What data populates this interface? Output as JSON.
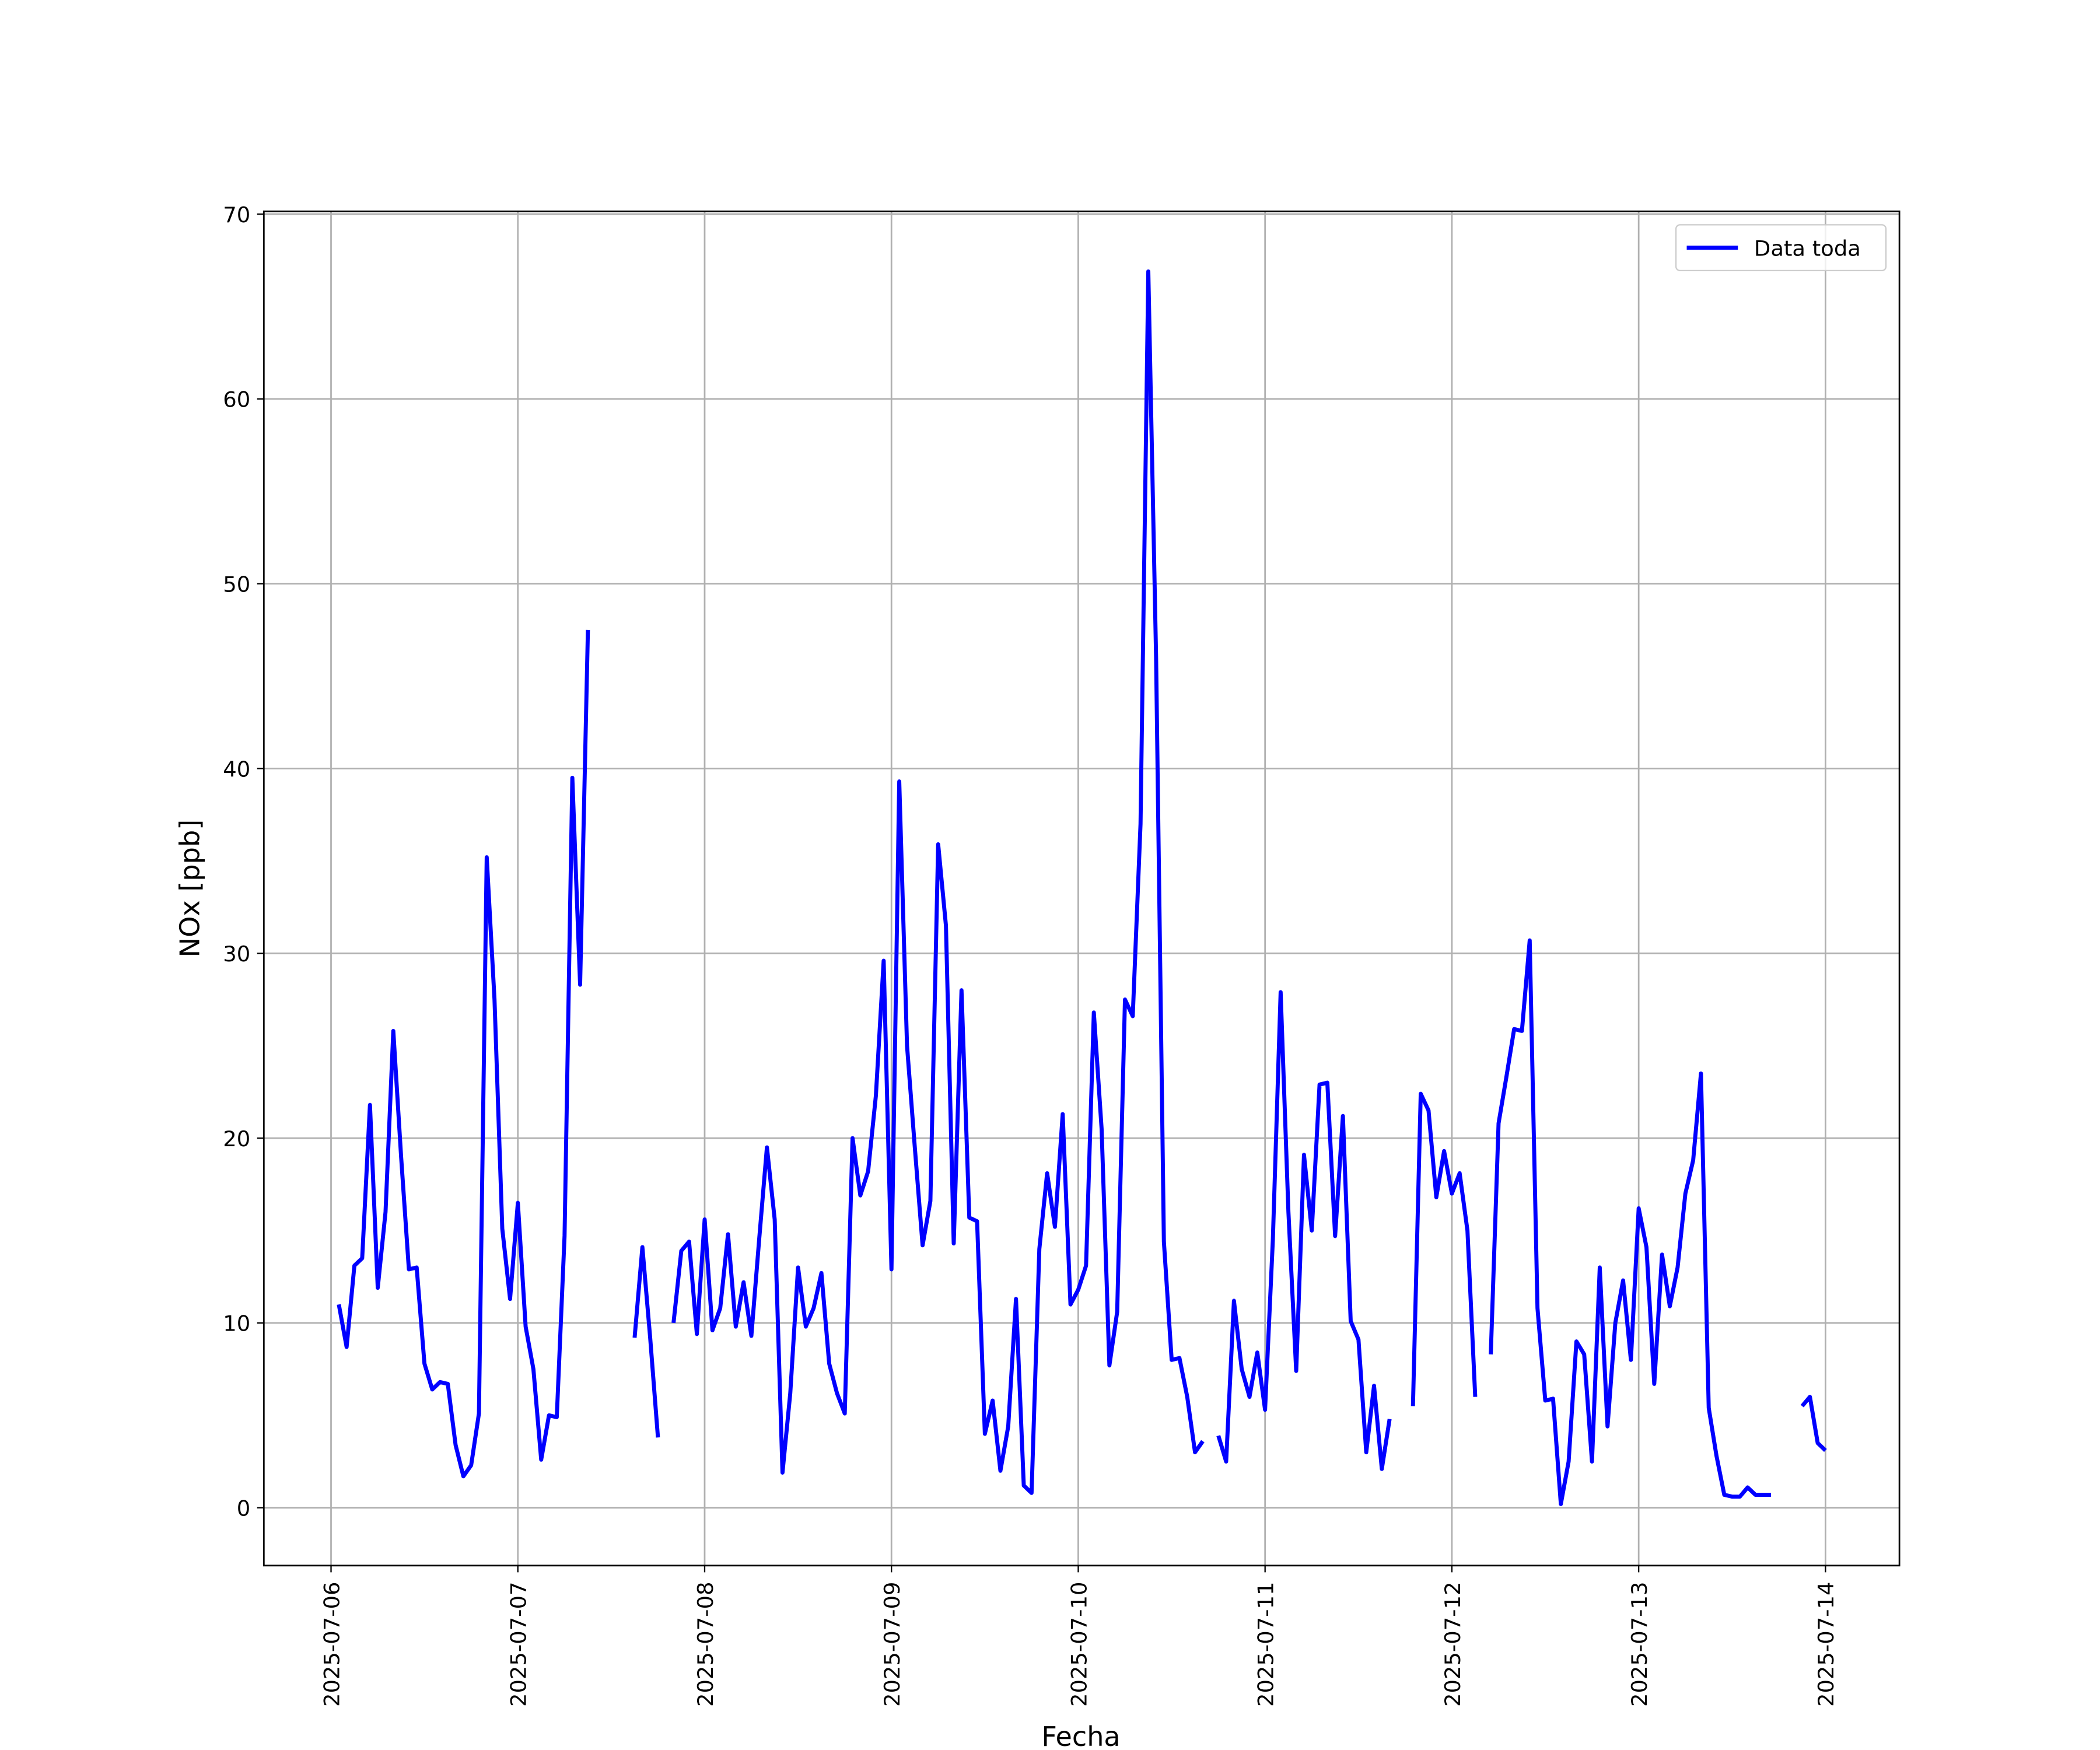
{
  "chart_data": {
    "type": "line",
    "x_label": "Fecha",
    "y_label": "NOx [ppb]",
    "x": [
      "2025-07-06 01:00",
      "2025-07-06 02:00",
      "2025-07-06 03:00",
      "2025-07-06 04:00",
      "2025-07-06 05:00",
      "2025-07-06 06:00",
      "2025-07-06 07:00",
      "2025-07-06 08:00",
      "2025-07-06 09:00",
      "2025-07-06 10:00",
      "2025-07-06 11:00",
      "2025-07-06 12:00",
      "2025-07-06 13:00",
      "2025-07-06 14:00",
      "2025-07-06 15:00",
      "2025-07-06 16:00",
      "2025-07-06 17:00",
      "2025-07-06 18:00",
      "2025-07-06 19:00",
      "2025-07-06 20:00",
      "2025-07-06 21:00",
      "2025-07-06 22:00",
      "2025-07-06 23:00",
      "2025-07-07 00:00",
      "2025-07-07 01:00",
      "2025-07-07 02:00",
      "2025-07-07 03:00",
      "2025-07-07 04:00",
      "2025-07-07 05:00",
      "2025-07-07 06:00",
      "2025-07-07 07:00",
      "2025-07-07 08:00",
      "2025-07-07 09:00",
      "2025-07-07 10:00",
      "2025-07-07 11:00",
      "2025-07-07 12:00",
      "2025-07-07 13:00",
      "2025-07-07 14:00",
      "2025-07-07 15:00",
      "2025-07-07 16:00",
      "2025-07-07 17:00",
      "2025-07-07 18:00",
      "2025-07-07 19:00",
      "2025-07-07 20:00",
      "2025-07-07 21:00",
      "2025-07-07 22:00",
      "2025-07-07 23:00",
      "2025-07-08 00:00",
      "2025-07-08 01:00",
      "2025-07-08 02:00",
      "2025-07-08 03:00",
      "2025-07-08 04:00",
      "2025-07-08 05:00",
      "2025-07-08 06:00",
      "2025-07-08 07:00",
      "2025-07-08 08:00",
      "2025-07-08 09:00",
      "2025-07-08 10:00",
      "2025-07-08 11:00",
      "2025-07-08 12:00",
      "2025-07-08 13:00",
      "2025-07-08 14:00",
      "2025-07-08 15:00",
      "2025-07-08 16:00",
      "2025-07-08 17:00",
      "2025-07-08 18:00",
      "2025-07-08 19:00",
      "2025-07-08 20:00",
      "2025-07-08 21:00",
      "2025-07-08 22:00",
      "2025-07-08 23:00",
      "2025-07-09 00:00",
      "2025-07-09 01:00",
      "2025-07-09 02:00",
      "2025-07-09 03:00",
      "2025-07-09 04:00",
      "2025-07-09 05:00",
      "2025-07-09 06:00",
      "2025-07-09 07:00",
      "2025-07-09 08:00",
      "2025-07-09 09:00",
      "2025-07-09 10:00",
      "2025-07-09 11:00",
      "2025-07-09 12:00",
      "2025-07-09 13:00",
      "2025-07-09 14:00",
      "2025-07-09 15:00",
      "2025-07-09 16:00",
      "2025-07-09 17:00",
      "2025-07-09 18:00",
      "2025-07-09 19:00",
      "2025-07-09 20:00",
      "2025-07-09 21:00",
      "2025-07-09 22:00",
      "2025-07-09 23:00",
      "2025-07-10 00:00",
      "2025-07-10 01:00",
      "2025-07-10 02:00",
      "2025-07-10 03:00",
      "2025-07-10 04:00",
      "2025-07-10 05:00",
      "2025-07-10 06:00",
      "2025-07-10 07:00",
      "2025-07-10 08:00",
      "2025-07-10 09:00",
      "2025-07-10 10:00",
      "2025-07-10 11:00",
      "2025-07-10 12:00",
      "2025-07-10 13:00",
      "2025-07-10 14:00",
      "2025-07-10 15:00",
      "2025-07-10 16:00",
      "2025-07-10 17:00",
      "2025-07-10 18:00",
      "2025-07-10 19:00",
      "2025-07-10 20:00",
      "2025-07-10 21:00",
      "2025-07-10 22:00",
      "2025-07-10 23:00",
      "2025-07-11 00:00",
      "2025-07-11 01:00",
      "2025-07-11 02:00",
      "2025-07-11 03:00",
      "2025-07-11 04:00",
      "2025-07-11 05:00",
      "2025-07-11 06:00",
      "2025-07-11 07:00",
      "2025-07-11 08:00",
      "2025-07-11 09:00",
      "2025-07-11 10:00",
      "2025-07-11 11:00",
      "2025-07-11 12:00",
      "2025-07-11 13:00",
      "2025-07-11 14:00",
      "2025-07-11 15:00",
      "2025-07-11 16:00",
      "2025-07-11 17:00",
      "2025-07-11 18:00",
      "2025-07-11 19:00",
      "2025-07-11 20:00",
      "2025-07-11 21:00",
      "2025-07-11 22:00",
      "2025-07-11 23:00",
      "2025-07-12 00:00",
      "2025-07-12 01:00",
      "2025-07-12 02:00",
      "2025-07-12 03:00",
      "2025-07-12 04:00",
      "2025-07-12 05:00",
      "2025-07-12 06:00",
      "2025-07-12 07:00",
      "2025-07-12 08:00",
      "2025-07-12 09:00",
      "2025-07-12 10:00",
      "2025-07-12 11:00",
      "2025-07-12 12:00",
      "2025-07-12 13:00",
      "2025-07-12 14:00",
      "2025-07-12 15:00",
      "2025-07-12 16:00",
      "2025-07-12 17:00",
      "2025-07-12 18:00",
      "2025-07-12 19:00",
      "2025-07-12 20:00",
      "2025-07-12 21:00",
      "2025-07-12 22:00",
      "2025-07-12 23:00",
      "2025-07-13 00:00",
      "2025-07-13 01:00",
      "2025-07-13 02:00",
      "2025-07-13 03:00",
      "2025-07-13 04:00",
      "2025-07-13 05:00",
      "2025-07-13 06:00",
      "2025-07-13 07:00",
      "2025-07-13 08:00",
      "2025-07-13 09:00",
      "2025-07-13 10:00",
      "2025-07-13 11:00",
      "2025-07-13 12:00",
      "2025-07-13 13:00",
      "2025-07-13 14:00",
      "2025-07-13 15:00",
      "2025-07-13 16:00",
      "2025-07-13 17:00",
      "2025-07-13 18:00",
      "2025-07-13 19:00",
      "2025-07-13 20:00",
      "2025-07-13 21:00",
      "2025-07-13 22:00",
      "2025-07-13 23:00",
      "2025-07-14 00:00"
    ],
    "series": [
      {
        "name": "Data toda",
        "color": "#0000ff",
        "values": [
          11,
          8.7,
          13.1,
          13.5,
          21.8,
          11.9,
          16,
          25.8,
          19,
          12.9,
          13,
          7.8,
          6.4,
          6.8,
          6.7,
          3.4,
          1.7,
          2.3,
          5.1,
          35.2,
          27.5,
          15.1,
          11.3,
          16.5,
          9.8,
          7.5,
          2.6,
          5,
          4.9,
          14.7,
          39.5,
          28.3,
          47.5,
          null,
          null,
          null,
          null,
          null,
          9.2,
          14.1,
          9.2,
          3.8,
          null,
          10,
          13.9,
          14.4,
          9.4,
          15.6,
          9.6,
          10.8,
          14.8,
          9.8,
          12.2,
          9.3,
          14.5,
          19.5,
          15.6,
          1.9,
          6.2,
          13,
          9.8,
          10.8,
          12.7,
          7.8,
          6.2,
          5.1,
          20,
          16.9,
          18.2,
          22.3,
          29.6,
          12.9,
          39.3,
          25,
          19.5,
          14.2,
          16.6,
          35.9,
          31.5,
          14.3,
          28,
          15.7,
          15.5,
          4,
          5.8,
          2,
          4.4,
          11.3,
          1.2,
          0.8,
          14,
          18.1,
          15.2,
          21.3,
          11,
          11.8,
          13.1,
          26.8,
          20.5,
          7.7,
          10.6,
          27.5,
          26.6,
          37,
          66.9,
          46,
          14.4,
          8,
          8.1,
          6,
          3,
          3.6,
          null,
          3.9,
          2.5,
          11.2,
          7.5,
          6,
          8.4,
          5.3,
          14.5,
          27.9,
          16,
          7.4,
          19.1,
          15,
          22.9,
          23,
          14.7,
          21.2,
          10.1,
          9.1,
          3,
          6.6,
          2.1,
          4.8,
          null,
          null,
          5.5,
          22.4,
          21.5,
          16.8,
          19.3,
          17,
          18.1,
          15,
          6,
          null,
          8.3,
          20.8,
          23.3,
          25.9,
          25.8,
          30.7,
          10.8,
          5.8,
          5.9,
          0.2,
          2.5,
          9,
          8.3,
          2.5,
          13,
          4.4,
          10,
          12.3,
          8,
          16.2,
          14.1,
          6.7,
          13.7,
          10.9,
          13,
          17,
          18.8,
          23.5,
          5.4,
          2.8,
          0.7,
          0.6,
          0.6,
          1.1,
          0.7,
          0.7,
          0.7,
          null,
          null,
          null,
          5.5,
          6,
          3.5,
          3.1
        ]
      }
    ],
    "xlim": [
      "2025-07-05 15:22",
      "2025-07-14 09:30"
    ],
    "xticks": [
      "2025-07-06",
      "2025-07-07",
      "2025-07-08",
      "2025-07-09",
      "2025-07-10",
      "2025-07-11",
      "2025-07-12",
      "2025-07-13",
      "2025-07-14"
    ],
    "ylim": [
      -3.13,
      70.15
    ],
    "yticks": [
      0,
      10,
      20,
      30,
      40,
      50,
      60,
      70
    ],
    "grid": true,
    "legend": "upper right"
  }
}
